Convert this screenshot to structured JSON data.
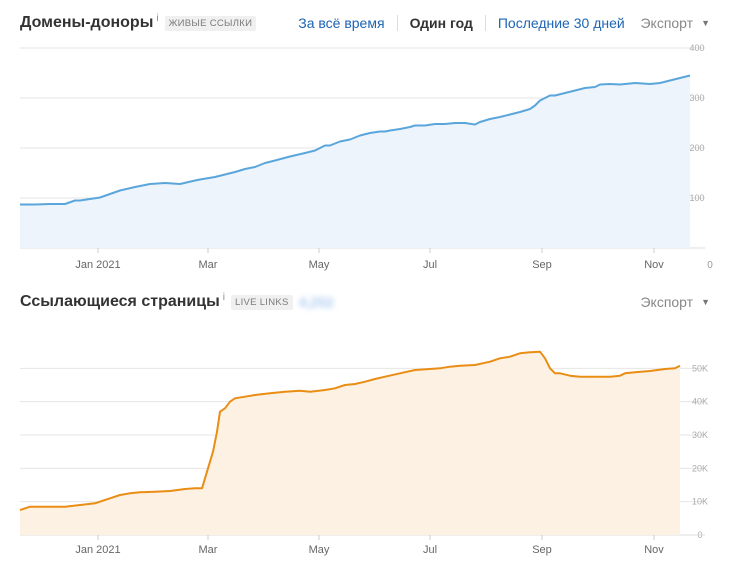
{
  "panels": [
    {
      "title": "Домены-доноры",
      "info": "i",
      "badge": "ЖИВЫЕ ССЫЛКИ",
      "periods": [
        {
          "label": "За всё время",
          "active": false
        },
        {
          "label": "Один год",
          "active": true
        },
        {
          "label": "Последние 30 дней",
          "active": false
        }
      ],
      "export_label": "Экспорт",
      "caret": "▼"
    },
    {
      "title": "Ссылающиеся страницы",
      "info": "i",
      "badge": "LIVE LINKS",
      "blurred_count": "4,252",
      "export_label": "Экспорт",
      "caret": "▼"
    }
  ],
  "chart_data": [
    {
      "type": "area",
      "series": [
        {
          "color": "#5aa6db",
          "fill": "#eef4fc",
          "x": [
            0,
            15,
            30,
            45,
            55,
            60,
            70,
            80,
            90,
            100,
            115,
            130,
            145,
            160,
            175,
            180,
            195,
            205,
            215,
            225,
            235,
            245,
            255,
            270,
            285,
            295,
            305,
            310,
            320,
            330,
            340,
            350,
            360,
            365,
            370,
            380,
            390,
            395,
            405,
            415,
            425,
            435,
            445,
            455,
            460,
            470,
            480,
            490,
            500,
            510,
            515,
            520,
            525,
            530,
            535,
            545,
            555,
            565,
            575,
            580,
            590,
            600,
            615,
            630,
            640,
            650,
            660,
            670
          ],
          "y": [
            87,
            87,
            88,
            88,
            95,
            95,
            98,
            101,
            108,
            115,
            122,
            128,
            130,
            128,
            135,
            137,
            142,
            147,
            152,
            158,
            162,
            170,
            175,
            183,
            190,
            195,
            205,
            205,
            213,
            217,
            225,
            230,
            233,
            233,
            235,
            238,
            242,
            245,
            245,
            248,
            248,
            250,
            250,
            247,
            252,
            258,
            262,
            267,
            272,
            278,
            285,
            295,
            300,
            305,
            305,
            310,
            315,
            320,
            322,
            327,
            328,
            327,
            330,
            328,
            330,
            335,
            340,
            345
          ],
          "color_area": "#eef4fc"
        }
      ],
      "x_ticks": [
        {
          "at": 78,
          "label": "Jan 2021"
        },
        {
          "at": 188,
          "label": "Mar"
        },
        {
          "at": 299,
          "label": "May"
        },
        {
          "at": 410,
          "label": "Jul"
        },
        {
          "at": 522,
          "label": "Sep"
        },
        {
          "at": 634,
          "label": "Nov"
        },
        {
          "at": 690,
          "label": "0"
        }
      ],
      "y_ticks": [
        {
          "at": 100,
          "label": "100"
        },
        {
          "at": 200,
          "label": "200"
        },
        {
          "at": 300,
          "label": "300"
        },
        {
          "at": 400,
          "label": "400"
        }
      ],
      "ylim": [
        0,
        400
      ],
      "grid": true
    },
    {
      "type": "area",
      "series": [
        {
          "color": "#ea8d14",
          "fill": "#fdf1e3",
          "x": [
            0,
            10,
            20,
            30,
            45,
            60,
            75,
            90,
            100,
            110,
            120,
            135,
            150,
            165,
            175,
            182,
            185,
            190,
            193,
            197,
            200,
            205,
            210,
            215,
            225,
            235,
            250,
            265,
            280,
            290,
            305,
            315,
            325,
            335,
            345,
            355,
            365,
            380,
            395,
            410,
            420,
            430,
            440,
            455,
            470,
            480,
            490,
            500,
            510,
            520,
            525,
            530,
            535,
            540,
            550,
            560,
            575,
            590,
            600,
            605,
            615,
            630,
            645,
            655,
            660
          ],
          "y": [
            7.5,
            8.5,
            8.5,
            8.5,
            8.5,
            9.0,
            9.5,
            11.0,
            12.0,
            12.5,
            12.8,
            13.0,
            13.2,
            13.8,
            14.0,
            14.0,
            17.0,
            22.0,
            25.0,
            31.0,
            37.0,
            38.0,
            40.0,
            41.0,
            41.5,
            42.0,
            42.5,
            43.0,
            43.3,
            43.0,
            43.5,
            44.0,
            45.0,
            45.3,
            46.0,
            46.8,
            47.5,
            48.5,
            49.5,
            49.8,
            50.0,
            50.5,
            50.8,
            51.0,
            52.0,
            53.0,
            53.5,
            54.5,
            54.8,
            55.0,
            53.0,
            50.0,
            48.5,
            48.5,
            47.8,
            47.5,
            47.5,
            47.5,
            47.8,
            48.5,
            48.8,
            49.2,
            49.8,
            50.0,
            50.8
          ],
          "color_area": "#fdf1e3"
        }
      ],
      "x_ticks": [
        {
          "at": 78,
          "label": "Jan 2021"
        },
        {
          "at": 188,
          "label": "Mar"
        },
        {
          "at": 299,
          "label": "May"
        },
        {
          "at": 410,
          "label": "Jul"
        },
        {
          "at": 522,
          "label": "Sep"
        },
        {
          "at": 634,
          "label": "Nov"
        }
      ],
      "y_ticks": [
        {
          "at": 0,
          "label": "0"
        },
        {
          "at": 10,
          "label": "10K"
        },
        {
          "at": 20,
          "label": "20K"
        },
        {
          "at": 30,
          "label": "30K"
        },
        {
          "at": 40,
          "label": "40K"
        },
        {
          "at": 50,
          "label": "50K"
        }
      ],
      "ylim": [
        0,
        60
      ],
      "grid": true
    }
  ]
}
